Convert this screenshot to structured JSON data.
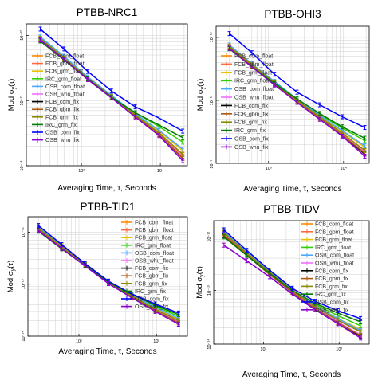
{
  "colors": {
    "FCB_com_float": "#ff8a00",
    "FCB_gbm_float": "#ff6a3d",
    "FCB_grm_float": "#e8c200",
    "IRC_grm_float": "#2fd000",
    "OSB_com_float": "#4aa8ff",
    "OSB_whu_float": "#f070ff",
    "FCB_com_fix": "#000000",
    "FCB_gbm_fix": "#b05a10",
    "FCB_grm_fix": "#8a8a00",
    "IRC_grm_fix": "#007a00",
    "OSB_com_fix": "#0000ff",
    "OSB_whu_fix": "#8a00d0",
    "grid": "#cfcfcf",
    "axis": "#000000"
  },
  "shared": {
    "xlabel": "Averaging Time, τ, Seconds",
    "ylabel": "Mod σ",
    "ylabel_sub": "y",
    "ylabel_tail": "(τ)"
  },
  "chart_data": [
    {
      "type": "line",
      "title": "PTBB-NRC1",
      "xscale": "log",
      "yscale": "log",
      "xlim": [
        200,
        22000
      ],
      "ylim": [
        1e-14,
        1.5e-12
      ],
      "xticks": [
        {
          "v": 1000,
          "label": "10³"
        },
        {
          "v": 10000,
          "label": "10⁴"
        }
      ],
      "yticks": [
        {
          "v": 1e-14,
          "label": "10⁻¹⁴"
        },
        {
          "v": 1e-13,
          "label": "10⁻¹³"
        },
        {
          "v": 1e-12,
          "label": "10⁻¹²"
        }
      ],
      "grid": true,
      "legend": {
        "position": "left",
        "entries": [
          "FCB_com_float",
          "FCB_gbm_float",
          "FCB_grm_float",
          "IRC_grm_float",
          "OSB_com_float",
          "OSB_whu_float",
          "FCB_com_fix",
          "FCB_gbm_fix",
          "FCB_grm_fix",
          "IRC_grm_fix",
          "OSB_com_fix",
          "OSB_whu_fix"
        ]
      },
      "x": [
        300,
        600,
        1200,
        2400,
        4800,
        9600,
        19200
      ],
      "series": [
        {
          "name": "FCB_com_float",
          "values": [
            8.8e-13,
            4.5e-13,
            2.2e-13,
            1.2e-13,
            6e-14,
            3.2e-14,
            1.5e-14
          ]
        },
        {
          "name": "FCB_gbm_float",
          "values": [
            9e-13,
            4.6e-13,
            2.2e-13,
            1.2e-13,
            6e-14,
            3.1e-14,
            1.4e-14
          ]
        },
        {
          "name": "FCB_grm_float",
          "values": [
            9.2e-13,
            4.7e-13,
            2.3e-13,
            1.2e-13,
            6.2e-14,
            3.4e-14,
            1.7e-14
          ]
        },
        {
          "name": "IRC_grm_float",
          "values": [
            8.5e-13,
            4.3e-13,
            2.2e-13,
            1.15e-13,
            6.5e-14,
            4e-14,
            2.3e-14
          ]
        },
        {
          "name": "OSB_com_float",
          "values": [
            9.5e-13,
            4.8e-13,
            2.3e-13,
            1.2e-13,
            6.3e-14,
            3.5e-14,
            1.8e-14
          ]
        },
        {
          "name": "OSB_whu_float",
          "values": [
            8.8e-13,
            4.4e-13,
            2.2e-13,
            1.15e-13,
            6e-14,
            3.1e-14,
            1.35e-14
          ]
        },
        {
          "name": "FCB_com_fix",
          "values": [
            8.5e-13,
            4.3e-13,
            2.1e-13,
            1.1e-13,
            5.8e-14,
            3e-14,
            1.3e-14
          ]
        },
        {
          "name": "FCB_gbm_fix",
          "values": [
            8.7e-13,
            4.4e-13,
            2.1e-13,
            1.1e-13,
            5.8e-14,
            3e-14,
            1.3e-14
          ]
        },
        {
          "name": "FCB_grm_fix",
          "values": [
            9e-13,
            4.5e-13,
            2.2e-13,
            1.15e-13,
            6e-14,
            3.2e-14,
            1.5e-14
          ]
        },
        {
          "name": "IRC_grm_fix",
          "values": [
            8.2e-13,
            4.2e-13,
            2.15e-13,
            1.12e-13,
            6.5e-14,
            4.2e-14,
            2.7e-14
          ]
        },
        {
          "name": "OSB_com_fix",
          "values": [
            1.25e-12,
            6.2e-13,
            2.8e-13,
            1.4e-13,
            8e-14,
            5.4e-14,
            3.4e-14
          ]
        },
        {
          "name": "OSB_whu_fix",
          "values": [
            8.5e-13,
            4.3e-13,
            2.1e-13,
            1.1e-13,
            5.6e-14,
            2.9e-14,
            1.2e-14
          ]
        }
      ]
    },
    {
      "type": "line",
      "title": "PTBB-OHI3",
      "xscale": "log",
      "yscale": "log",
      "xlim": [
        200,
        22000
      ],
      "ylim": [
        1e-14,
        1.5e-12
      ],
      "xticks": [
        {
          "v": 1000,
          "label": "10³"
        },
        {
          "v": 10000,
          "label": "10⁴"
        }
      ],
      "yticks": [
        {
          "v": 1e-14,
          "label": "10⁻¹⁴"
        },
        {
          "v": 1e-13,
          "label": "10⁻¹³"
        },
        {
          "v": 1e-12,
          "label": "10⁻¹²"
        }
      ],
      "grid": true,
      "legend": {
        "position": "left",
        "entries": [
          "FCB_com_float",
          "FCB_gbm_float",
          "FCB_grm_float",
          "IRC_grm_float",
          "OSB_com_float",
          "OSB_whu_float",
          "FCB_com_fix",
          "FCB_gbm_fix",
          "FCB_grm_fix",
          "IRC_grm_fix",
          "OSB_com_fix",
          "OSB_whu_fix"
        ]
      },
      "x": [
        300,
        600,
        1200,
        2400,
        4800,
        9600,
        19200
      ],
      "series": [
        {
          "name": "FCB_com_float",
          "values": [
            7e-13,
            3.6e-13,
            1.9e-13,
            1e-13,
            5.5e-14,
            3e-14,
            1.6e-14
          ]
        },
        {
          "name": "FCB_gbm_float",
          "values": [
            7.2e-13,
            3.7e-13,
            1.9e-13,
            1e-13,
            5.5e-14,
            3e-14,
            1.6e-14
          ]
        },
        {
          "name": "FCB_grm_float",
          "values": [
            7.5e-13,
            3.8e-13,
            2e-13,
            1.05e-13,
            5.8e-14,
            3.2e-14,
            1.8e-14
          ]
        },
        {
          "name": "IRC_grm_float",
          "values": [
            6.8e-13,
            3.5e-13,
            1.9e-13,
            1.05e-13,
            6e-14,
            3.6e-14,
            2.3e-14
          ]
        },
        {
          "name": "OSB_com_float",
          "values": [
            7.6e-13,
            3.8e-13,
            2e-13,
            1.05e-13,
            5.8e-14,
            3.3e-14,
            1.9e-14
          ]
        },
        {
          "name": "OSB_whu_float",
          "values": [
            7e-13,
            3.6e-13,
            1.85e-13,
            9.8e-14,
            5.3e-14,
            2.9e-14,
            1.5e-14
          ]
        },
        {
          "name": "FCB_com_fix",
          "values": [
            6.8e-13,
            3.5e-13,
            1.8e-13,
            9.5e-14,
            5.2e-14,
            2.8e-14,
            1.4e-14
          ]
        },
        {
          "name": "FCB_gbm_fix",
          "values": [
            6.9e-13,
            3.5e-13,
            1.8e-13,
            9.6e-14,
            5.2e-14,
            2.8e-14,
            1.45e-14
          ]
        },
        {
          "name": "FCB_grm_fix",
          "values": [
            7.2e-13,
            3.7e-13,
            1.9e-13,
            1e-13,
            5.5e-14,
            3e-14,
            1.6e-14
          ]
        },
        {
          "name": "IRC_grm_fix",
          "values": [
            6.6e-13,
            3.4e-13,
            1.85e-13,
            1.05e-13,
            6.2e-14,
            3.8e-14,
            2.5e-14
          ]
        },
        {
          "name": "OSB_com_fix",
          "values": [
            1.15e-12,
            5.7e-13,
            2.6e-13,
            1.35e-13,
            8.5e-14,
            5.5e-14,
            3.7e-14
          ]
        },
        {
          "name": "OSB_whu_fix",
          "values": [
            6.7e-13,
            3.4e-13,
            1.75e-13,
            9.3e-14,
            5e-14,
            2.7e-14,
            1.3e-14
          ]
        }
      ]
    },
    {
      "type": "line",
      "title": "PTBB-TID1",
      "xscale": "log",
      "yscale": "log",
      "xlim": [
        2.2,
        250
      ],
      "ylim": [
        1e-14,
        2e-12
      ],
      "xticks": [
        {
          "v": 10,
          "label": "10¹"
        },
        {
          "v": 100,
          "label": "10²"
        }
      ],
      "yticks": [
        {
          "v": 1e-14,
          "label": "10⁻¹⁴"
        },
        {
          "v": 1e-13,
          "label": "10⁻¹³"
        },
        {
          "v": 1e-12,
          "label": "10⁻¹²"
        }
      ],
      "grid": true,
      "legend": {
        "position": "right",
        "entries": [
          "FCB_com_float",
          "FCB_gbm_float",
          "FCB_grm_float",
          "IRC_grm_float",
          "OSB_com_float",
          "OSB_whu_float",
          "FCB_com_fix",
          "FCB_gbm_fix",
          "FCB_grm_fix",
          "IRC_grm_fix",
          "OSB_com_fix",
          "OSB_whu_fix"
        ]
      },
      "x": [
        3,
        6,
        12,
        24,
        48,
        96,
        192
      ],
      "series": [
        {
          "name": "FCB_com_float",
          "values": [
            1.15e-12,
            5.2e-13,
            2.4e-13,
            1.1e-13,
            6e-14,
            3.4e-14,
            2e-14
          ]
        },
        {
          "name": "FCB_gbm_float",
          "values": [
            1.2e-12,
            5.3e-13,
            2.4e-13,
            1.1e-13,
            6e-14,
            3.4e-14,
            2e-14
          ]
        },
        {
          "name": "FCB_grm_float",
          "values": [
            1.3e-12,
            5.6e-13,
            2.5e-13,
            1.15e-13,
            6.2e-14,
            3.5e-14,
            2.1e-14
          ]
        },
        {
          "name": "IRC_grm_float",
          "values": [
            1.1e-12,
            5e-13,
            2.35e-13,
            1.1e-13,
            6.3e-14,
            3.8e-14,
            2.4e-14
          ]
        },
        {
          "name": "OSB_com_float",
          "values": [
            1.25e-12,
            5.4e-13,
            2.4e-13,
            1.12e-13,
            6.2e-14,
            3.6e-14,
            2.2e-14
          ]
        },
        {
          "name": "OSB_whu_float",
          "values": [
            1.15e-12,
            5.1e-13,
            2.3e-13,
            1.08e-13,
            5.8e-14,
            3.2e-14,
            1.9e-14
          ]
        },
        {
          "name": "FCB_com_fix",
          "values": [
            1.1e-12,
            5e-13,
            2.3e-13,
            1.05e-13,
            5.7e-14,
            3.1e-14,
            1.8e-14
          ]
        },
        {
          "name": "FCB_gbm_fix",
          "values": [
            1.12e-12,
            5e-13,
            2.3e-13,
            1.05e-13,
            5.7e-14,
            3.1e-14,
            1.8e-14
          ]
        },
        {
          "name": "FCB_grm_fix",
          "values": [
            1.2e-12,
            5.3e-13,
            2.4e-13,
            1.1e-13,
            6e-14,
            3.3e-14,
            2e-14
          ]
        },
        {
          "name": "IRC_grm_fix",
          "values": [
            1.05e-12,
            4.8e-13,
            2.3e-13,
            1.1e-13,
            6.4e-14,
            4e-14,
            2.6e-14
          ]
        },
        {
          "name": "OSB_com_fix",
          "values": [
            1.35e-12,
            5.8e-13,
            2.5e-13,
            1.15e-13,
            6.5e-14,
            4.2e-14,
            2.8e-14
          ]
        },
        {
          "name": "OSB_whu_fix",
          "values": [
            1.08e-12,
            4.9e-13,
            2.25e-13,
            1.03e-13,
            5.5e-14,
            3e-14,
            1.7e-14
          ]
        }
      ]
    },
    {
      "type": "line",
      "title": "PTBB-TIDV",
      "xscale": "log",
      "yscale": "log",
      "xlim": [
        2.2,
        250
      ],
      "ylim": [
        1e-14,
        2e-12
      ],
      "xticks": [
        {
          "v": 10,
          "label": "10¹"
        },
        {
          "v": 100,
          "label": "10²"
        }
      ],
      "yticks": [
        {
          "v": 1e-14,
          "label": "10⁻¹⁴"
        },
        {
          "v": 1e-13,
          "label": "10⁻¹³"
        },
        {
          "v": 1e-12,
          "label": "10⁻¹²"
        }
      ],
      "grid": true,
      "legend": {
        "position": "right",
        "entries": [
          "FCB_com_float",
          "FCB_gbm_float",
          "FCB_grm_float",
          "IRC_grm_float",
          "OSB_com_float",
          "OSB_whu_float",
          "FCB_com_fix",
          "FCB_gbm_fix",
          "FCB_grm_fix",
          "IRC_grm_fix",
          "OSB_com_fix",
          "OSB_whu_fix"
        ]
      },
      "x": [
        3,
        6,
        12,
        24,
        48,
        96,
        192
      ],
      "series": [
        {
          "name": "FCB_com_float",
          "values": [
            1.15e-12,
            5e-13,
            2.2e-13,
            1e-13,
            5e-14,
            2.8e-14,
            1.7e-14
          ]
        },
        {
          "name": "FCB_gbm_float",
          "values": [
            1.2e-12,
            5.1e-13,
            2.2e-13,
            1e-13,
            5e-14,
            2.8e-14,
            1.7e-14
          ]
        },
        {
          "name": "FCB_grm_float",
          "values": [
            1.3e-12,
            5.4e-13,
            2.3e-13,
            1.05e-13,
            5.3e-14,
            3e-14,
            1.9e-14
          ]
        },
        {
          "name": "IRC_grm_float",
          "values": [
            1.1e-12,
            4.8e-13,
            2.15e-13,
            1e-13,
            5.5e-14,
            3.4e-14,
            2.2e-14
          ]
        },
        {
          "name": "OSB_com_float",
          "values": [
            1.25e-12,
            5.2e-13,
            2.25e-13,
            1.02e-13,
            5.2e-14,
            3e-14,
            1.8e-14
          ]
        },
        {
          "name": "OSB_whu_float",
          "values": [
            1.1e-12,
            4.8e-13,
            2.1e-13,
            9.6e-14,
            4.8e-14,
            2.6e-14,
            1.5e-14
          ]
        },
        {
          "name": "FCB_com_fix",
          "values": [
            1.05e-12,
            4.6e-13,
            2e-13,
            9.2e-14,
            4.6e-14,
            2.5e-14,
            1.4e-14
          ]
        },
        {
          "name": "FCB_gbm_fix",
          "values": [
            1.08e-12,
            4.7e-13,
            2e-13,
            9.3e-14,
            4.6e-14,
            2.5e-14,
            1.45e-14
          ]
        },
        {
          "name": "FCB_grm_fix",
          "values": [
            1.2e-12,
            5e-13,
            2.2e-13,
            1e-13,
            5e-14,
            2.8e-14,
            1.7e-14
          ]
        },
        {
          "name": "IRC_grm_fix",
          "values": [
            1e-12,
            4.5e-13,
            2.1e-13,
            1e-13,
            5.8e-14,
            3.8e-14,
            2.6e-14
          ]
        },
        {
          "name": "OSB_com_fix",
          "values": [
            1.35e-12,
            5.6e-13,
            2.4e-13,
            1.1e-13,
            6.3e-14,
            4.2e-14,
            3e-14
          ]
        },
        {
          "name": "OSB_whu_fix",
          "values": [
            7e-13,
            3.6e-13,
            1.8e-13,
            8.6e-14,
            4.4e-14,
            2.4e-14,
            1.3e-14
          ]
        }
      ]
    }
  ]
}
